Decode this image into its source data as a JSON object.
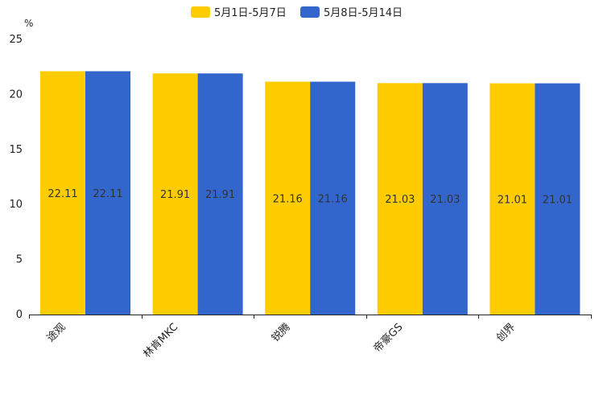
{
  "chart_data": {
    "type": "bar",
    "title": "",
    "xlabel": "",
    "ylabel": "",
    "y_unit": "%",
    "ylim": [
      0,
      25
    ],
    "yticks": [
      0,
      5,
      10,
      15,
      20,
      25
    ],
    "grid": false,
    "legend_position": "top-center",
    "categories": [
      "途观",
      "林肯MKC",
      "锐腾",
      "帝豪GS",
      "创界"
    ],
    "series": [
      {
        "name": "5月1日-5月7日",
        "color": "#FFCC00",
        "values": [
          22.11,
          21.91,
          21.16,
          21.03,
          21.01
        ]
      },
      {
        "name": "5月8日-5月14日",
        "color": "#3366CC",
        "values": [
          22.11,
          21.91,
          21.16,
          21.03,
          21.01
        ]
      }
    ]
  }
}
